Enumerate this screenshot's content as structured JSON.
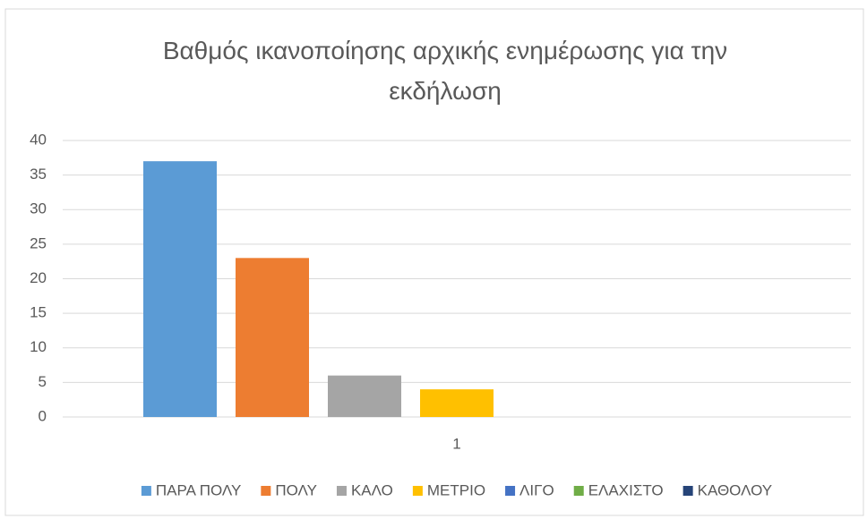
{
  "chart_data": {
    "type": "bar",
    "title": "Βαθμός ικανοποίησης αρχικής ενημέρωσης για την εκδήλωση",
    "categories": [
      "1"
    ],
    "series": [
      {
        "name": "ΠΑΡΑ ΠΟΛΥ",
        "color": "#5b9bd5",
        "values": [
          37
        ]
      },
      {
        "name": "ΠΟΛΥ",
        "color": "#ed7d31",
        "values": [
          23
        ]
      },
      {
        "name": "ΚΑΛΟ",
        "color": "#a5a5a5",
        "values": [
          6
        ]
      },
      {
        "name": "ΜΕΤΡΙΟ",
        "color": "#ffc000",
        "values": [
          4
        ]
      },
      {
        "name": "ΛΙΓΟ",
        "color": "#4472c4",
        "values": [
          0
        ]
      },
      {
        "name": "ΕΛΑΧΙΣΤΟ",
        "color": "#70ad47",
        "values": [
          0
        ]
      },
      {
        "name": "ΚΑΘΟΛΟΥ",
        "color": "#264478",
        "values": [
          0
        ]
      }
    ],
    "ylim": [
      0,
      40
    ],
    "yticks": [
      0,
      5,
      10,
      15,
      20,
      25,
      30,
      35,
      40
    ],
    "grid": true,
    "legend": "bottom"
  }
}
